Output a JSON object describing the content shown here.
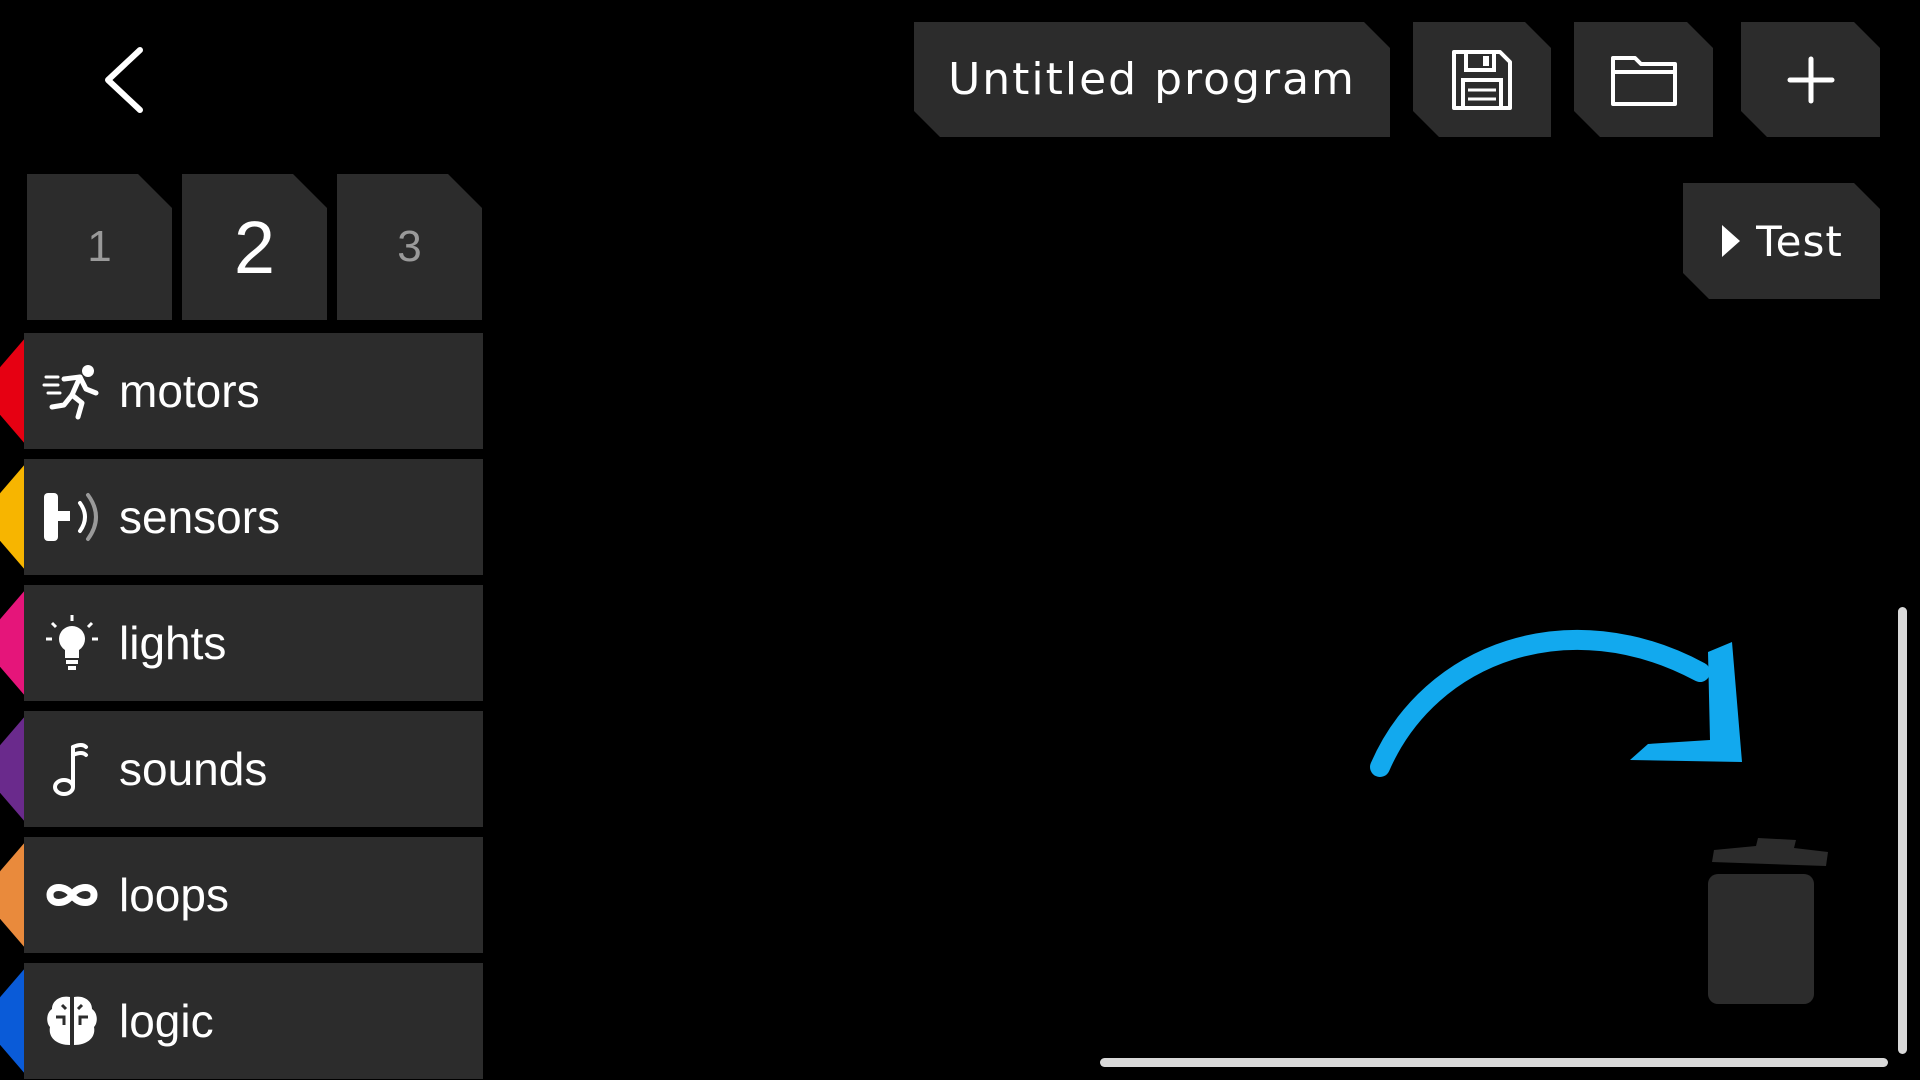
{
  "header": {
    "program_title": "Untitled program",
    "back_icon": "chevron-left-icon",
    "save_icon": "floppy-disk-icon",
    "open_icon": "folder-icon",
    "new_icon": "plus-icon"
  },
  "test_button": {
    "label": "Test",
    "icon": "play-triangle-icon"
  },
  "page_tabs": [
    {
      "label": "1",
      "active": false
    },
    {
      "label": "2",
      "active": true
    },
    {
      "label": "3",
      "active": false
    }
  ],
  "categories": [
    {
      "label": "motors",
      "color": "#e60012",
      "icon": "running-person-icon"
    },
    {
      "label": "sensors",
      "color": "#f7b500",
      "icon": "sensor-wave-icon"
    },
    {
      "label": "lights",
      "color": "#e5157a",
      "icon": "lightbulb-icon"
    },
    {
      "label": "sounds",
      "color": "#6a2a8c",
      "icon": "music-note-icon"
    },
    {
      "label": "loops",
      "color": "#e98a3c",
      "icon": "infinity-loop-icon"
    },
    {
      "label": "logic",
      "color": "#0a5bd8",
      "icon": "brain-icon"
    }
  ],
  "canvas": {
    "hint_arrow_color": "#12a9ee",
    "trash_icon": "trash-can-icon",
    "panel_color": "#2c2c2c"
  }
}
